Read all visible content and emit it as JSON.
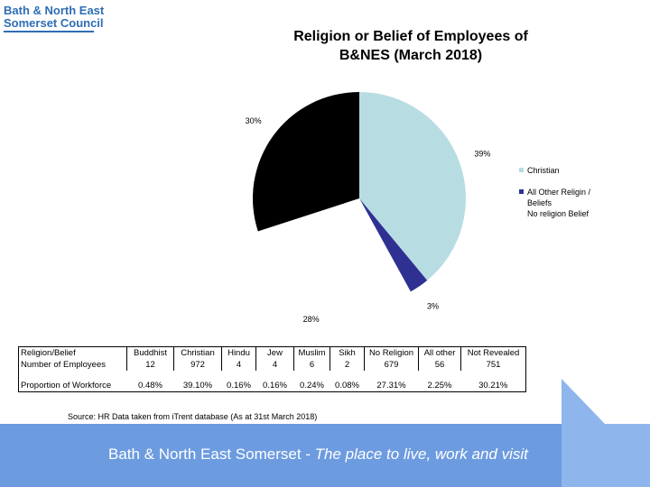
{
  "logo": {
    "line1": "Bath & North East",
    "line2": "Somerset Council"
  },
  "chart_data": {
    "type": "pie",
    "title": "Religion or Belief of Employees of B&NES (March 2018)",
    "categories": [
      "Christian",
      "All Other Religin / Beliefs",
      "No religion Belief",
      null
    ],
    "values": [
      39,
      3,
      28,
      30
    ],
    "value_labels": [
      "39%",
      "3%",
      "28%",
      "30%"
    ],
    "colors": [
      "#b7dde3",
      "#2e3192",
      "#ffffff",
      "#000000"
    ]
  },
  "table": {
    "header": [
      "Religion/Belief",
      "Buddhist",
      "Christian",
      "Hindu",
      "Jew",
      "Muslim",
      "Sikh",
      "No Religion",
      "All other",
      "Not Revealed"
    ],
    "rows": [
      [
        "Number of Employees",
        12,
        972,
        4,
        4,
        6,
        2,
        679,
        56,
        751
      ],
      [
        "Proportion of Workforce",
        "0.48%",
        "39.10%",
        "0.16%",
        "0.16%",
        "0.24%",
        "0.08%",
        "27.31%",
        "2.25%",
        "30.21%"
      ]
    ],
    "source": "Source: HR Data taken from iTrent database (As at 31st March 2018)"
  },
  "footer": {
    "text": "Bath & North East Somerset - ",
    "tagline": "The place to live, work and visit"
  }
}
